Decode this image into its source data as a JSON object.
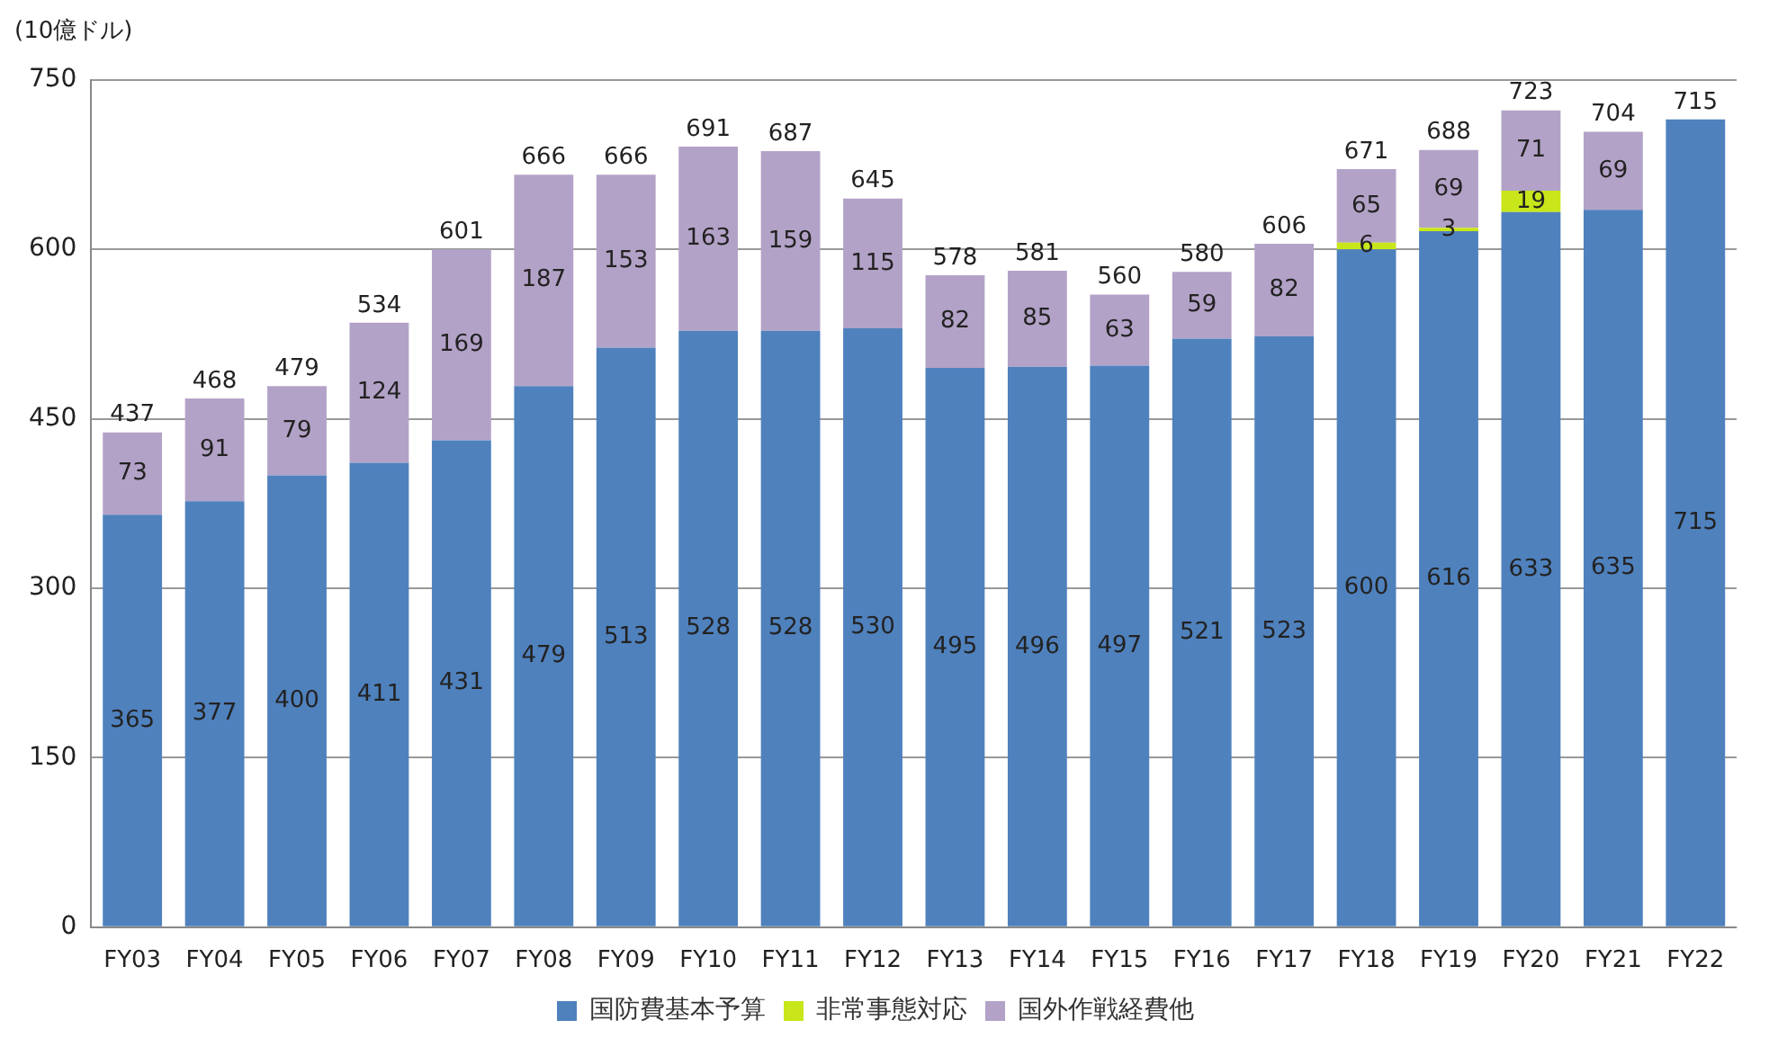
{
  "chart_data": {
    "type": "bar",
    "stacked": true,
    "ylabel": "(10億ドル)",
    "categories": [
      "FY03",
      "FY04",
      "FY05",
      "FY06",
      "FY07",
      "FY08",
      "FY09",
      "FY10",
      "FY11",
      "FY12",
      "FY13",
      "FY14",
      "FY15",
      "FY16",
      "FY17",
      "FY18",
      "FY19",
      "FY20",
      "FY21",
      "FY22"
    ],
    "series": [
      {
        "name": "国防費基本予算",
        "color": "#4f81bd",
        "values": [
          365,
          377,
          400,
          411,
          431,
          479,
          513,
          528,
          528,
          530,
          495,
          496,
          497,
          521,
          523,
          600,
          616,
          633,
          635,
          715
        ]
      },
      {
        "name": "非常事態対応",
        "color": "#c8e619",
        "values": [
          null,
          null,
          null,
          null,
          null,
          null,
          null,
          null,
          null,
          null,
          null,
          null,
          null,
          null,
          null,
          6,
          3,
          19,
          null,
          null
        ]
      },
      {
        "name": "国外作戦経費他",
        "color": "#b3a2c7",
        "values": [
          73,
          91,
          79,
          124,
          169,
          187,
          153,
          163,
          159,
          115,
          82,
          85,
          63,
          59,
          82,
          65,
          69,
          71,
          69,
          null
        ]
      }
    ],
    "totals": [
      "437",
      "468",
      "479",
      "534",
      "601",
      "666",
      "666",
      "691",
      "687",
      "645",
      "578",
      "581",
      "560",
      "580",
      "606",
      "671",
      "688",
      "723",
      "704",
      "715"
    ],
    "data_labels": true,
    "ylim": [
      0,
      750
    ],
    "yticks": [
      0,
      150,
      300,
      450,
      600,
      750
    ],
    "grid": "y",
    "legend": "bottom"
  }
}
